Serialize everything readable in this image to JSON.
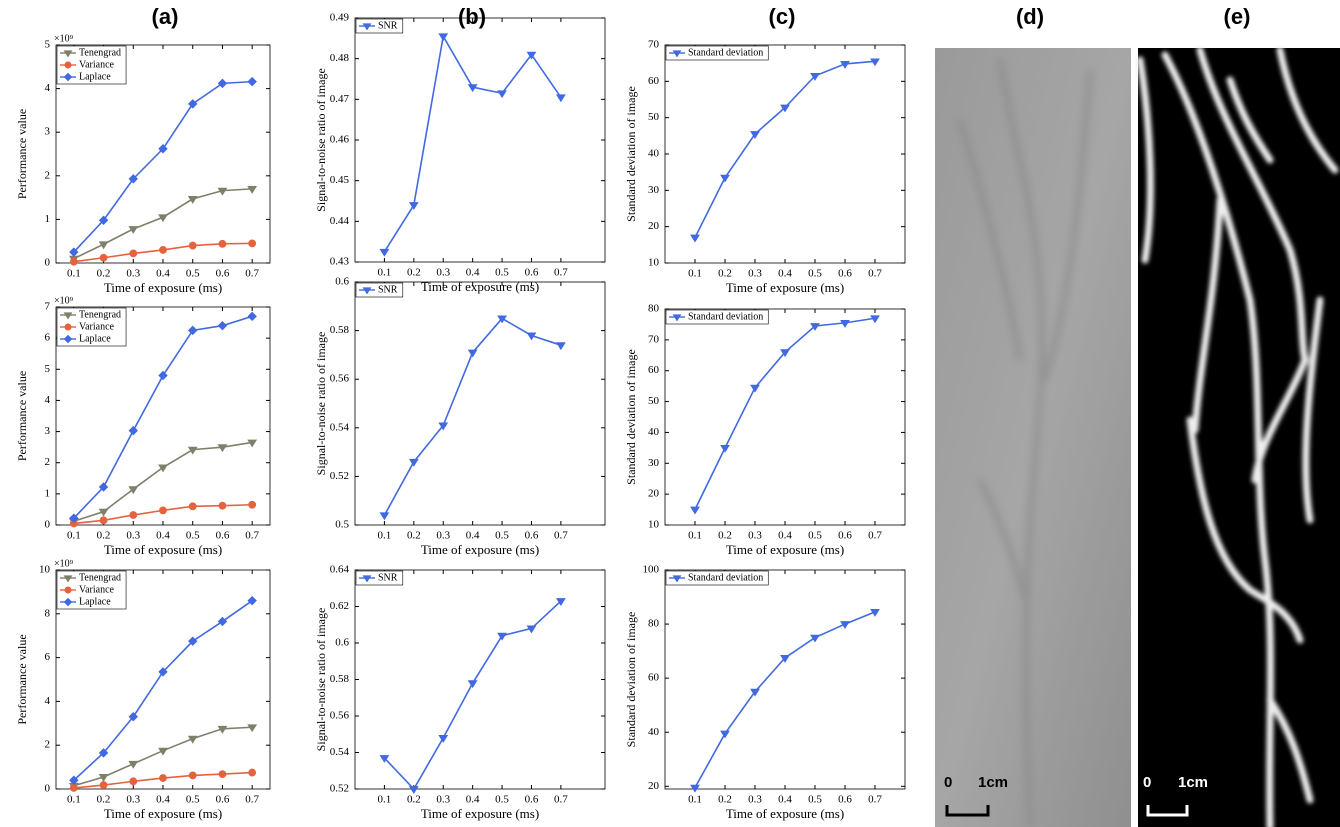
{
  "panel_labels": [
    "(a)",
    "(b)",
    "(c)",
    "(d)",
    "(e)"
  ],
  "scale_bars": [
    {
      "start": "0",
      "end": "1cm"
    },
    {
      "start": "0",
      "end": "1cm"
    }
  ],
  "chart_data": [
    {
      "type": "line",
      "x": [
        0.1,
        0.2,
        0.3,
        0.4,
        0.5,
        0.6,
        0.7
      ],
      "xlim": [
        0.04,
        0.76
      ],
      "xticks": [
        0.1,
        0.2,
        0.3,
        0.4,
        0.5,
        0.6,
        0.7
      ],
      "ylim": [
        0,
        5
      ],
      "yticks": [
        0,
        1,
        2,
        3,
        4,
        5
      ],
      "y_multiplier": "×10⁹",
      "xlabel": "Time of exposure (ms)",
      "ylabel": "Performance value",
      "legend": "upper left",
      "series": [
        {
          "name": "Tenengrad",
          "color": "#7f7f6a",
          "marker": "tri",
          "values": [
            0.1,
            0.43,
            0.78,
            1.05,
            1.47,
            1.66,
            1.7
          ]
        },
        {
          "name": "Variance",
          "color": "#e5623e",
          "marker": "circle",
          "values": [
            0.03,
            0.12,
            0.22,
            0.3,
            0.4,
            0.44,
            0.45
          ]
        },
        {
          "name": "Laplace",
          "color": "#4169e1",
          "marker": "diamond",
          "values": [
            0.25,
            0.98,
            1.93,
            2.62,
            3.65,
            4.12,
            4.16
          ]
        }
      ]
    },
    {
      "type": "line",
      "x": [
        0.1,
        0.2,
        0.3,
        0.4,
        0.5,
        0.6,
        0.7
      ],
      "xlim": [
        0,
        0.85
      ],
      "xticks": [
        0.1,
        0.2,
        0.3,
        0.4,
        0.5,
        0.6,
        0.7
      ],
      "ylim": [
        0.43,
        0.49
      ],
      "yticks": [
        0.43,
        0.44,
        0.45,
        0.46,
        0.47,
        0.48,
        0.49
      ],
      "xlabel": "Time of exposure (ms)",
      "ylabel": "Signal-to-noise ratio of image",
      "legend": "upper left",
      "series": [
        {
          "name": "SNR",
          "color": "#4169e1",
          "marker": "tri",
          "values": [
            0.4325,
            0.444,
            0.4855,
            0.473,
            0.4715,
            0.481,
            0.4705
          ]
        }
      ]
    },
    {
      "type": "line",
      "x": [
        0.1,
        0.2,
        0.3,
        0.4,
        0.5,
        0.6,
        0.7
      ],
      "xlim": [
        0,
        0.8
      ],
      "xticks": [
        0.1,
        0.2,
        0.3,
        0.4,
        0.5,
        0.6,
        0.7
      ],
      "ylim": [
        10,
        70
      ],
      "yticks": [
        10,
        20,
        30,
        40,
        50,
        60,
        70
      ],
      "xlabel": "Time of exposure (ms)",
      "ylabel": "Standard deviation of image",
      "legend": "upper left",
      "series": [
        {
          "name": "Standard deviation",
          "color": "#4169e1",
          "marker": "tri",
          "values": [
            17,
            33.5,
            45.5,
            52.8,
            61.5,
            64.8,
            65.5
          ]
        }
      ]
    },
    {
      "type": "line",
      "x": [
        0.1,
        0.2,
        0.3,
        0.4,
        0.5,
        0.6,
        0.7
      ],
      "xlim": [
        0.04,
        0.76
      ],
      "xticks": [
        0.1,
        0.2,
        0.3,
        0.4,
        0.5,
        0.6,
        0.7
      ],
      "ylim": [
        0,
        7
      ],
      "yticks": [
        0,
        1,
        2,
        3,
        4,
        5,
        6,
        7
      ],
      "y_multiplier": "×10⁹",
      "xlabel": "Time of exposure (ms)",
      "ylabel": "Performance value",
      "legend": "upper left",
      "series": [
        {
          "name": "Tenengrad",
          "color": "#7f7f6a",
          "marker": "tri",
          "values": [
            0.12,
            0.43,
            1.15,
            1.85,
            2.42,
            2.5,
            2.65
          ]
        },
        {
          "name": "Variance",
          "color": "#e5623e",
          "marker": "circle",
          "values": [
            0.05,
            0.15,
            0.32,
            0.47,
            0.6,
            0.62,
            0.65
          ]
        },
        {
          "name": "Laplace",
          "color": "#4169e1",
          "marker": "diamond",
          "values": [
            0.22,
            1.22,
            3.03,
            4.8,
            6.25,
            6.4,
            6.7
          ]
        }
      ]
    },
    {
      "type": "line",
      "x": [
        0.1,
        0.2,
        0.3,
        0.4,
        0.5,
        0.6,
        0.7
      ],
      "xlim": [
        0,
        0.85
      ],
      "xticks": [
        0.1,
        0.2,
        0.3,
        0.4,
        0.5,
        0.6,
        0.7
      ],
      "ylim": [
        0.5,
        0.6
      ],
      "yticks": [
        0.5,
        0.52,
        0.54,
        0.56,
        0.58,
        0.6
      ],
      "xlabel": "Time of exposure (ms)",
      "ylabel": "Signal-to-noise ratio of image",
      "legend": "upper left",
      "series": [
        {
          "name": "SNR",
          "color": "#4169e1",
          "marker": "tri",
          "values": [
            0.504,
            0.526,
            0.541,
            0.571,
            0.585,
            0.578,
            0.574
          ]
        }
      ]
    },
    {
      "type": "line",
      "x": [
        0.1,
        0.2,
        0.3,
        0.4,
        0.5,
        0.6,
        0.7
      ],
      "xlim": [
        0,
        0.8
      ],
      "xticks": [
        0.1,
        0.2,
        0.3,
        0.4,
        0.5,
        0.6,
        0.7
      ],
      "ylim": [
        10,
        80
      ],
      "yticks": [
        10,
        20,
        30,
        40,
        50,
        60,
        70,
        80
      ],
      "xlabel": "Time of exposure (ms)",
      "ylabel": "Standard deviation of image",
      "legend": "upper left",
      "series": [
        {
          "name": "Standard deviation",
          "color": "#4169e1",
          "marker": "tri",
          "values": [
            15,
            35,
            54.5,
            66,
            74.5,
            75.5,
            77
          ]
        }
      ]
    },
    {
      "type": "line",
      "x": [
        0.1,
        0.2,
        0.3,
        0.4,
        0.5,
        0.6,
        0.7
      ],
      "xlim": [
        0.04,
        0.76
      ],
      "xticks": [
        0.1,
        0.2,
        0.3,
        0.4,
        0.5,
        0.6,
        0.7
      ],
      "ylim": [
        0,
        10
      ],
      "yticks": [
        0,
        2,
        4,
        6,
        8,
        10
      ],
      "y_multiplier": "×10⁹",
      "xlabel": "Time of exposure (ms)",
      "ylabel": "Performance value",
      "legend": "upper left",
      "series": [
        {
          "name": "Tenengrad",
          "color": "#7f7f6a",
          "marker": "tri",
          "values": [
            0.15,
            0.55,
            1.15,
            1.75,
            2.3,
            2.75,
            2.82
          ]
        },
        {
          "name": "Variance",
          "color": "#e5623e",
          "marker": "circle",
          "values": [
            0.05,
            0.18,
            0.35,
            0.5,
            0.62,
            0.68,
            0.75
          ]
        },
        {
          "name": "Laplace",
          "color": "#4169e1",
          "marker": "diamond",
          "values": [
            0.4,
            1.65,
            3.3,
            5.35,
            6.75,
            7.65,
            8.6
          ]
        }
      ]
    },
    {
      "type": "line",
      "x": [
        0.1,
        0.2,
        0.3,
        0.4,
        0.5,
        0.6,
        0.7
      ],
      "xlim": [
        0,
        0.85
      ],
      "xticks": [
        0.1,
        0.2,
        0.3,
        0.4,
        0.5,
        0.6,
        0.7
      ],
      "ylim": [
        0.52,
        0.64
      ],
      "yticks": [
        0.52,
        0.54,
        0.56,
        0.58,
        0.6,
        0.62,
        0.64
      ],
      "xlabel": "Time of exposure (ms)",
      "ylabel": "Signal-to-noise ratio of image",
      "legend": "upper left",
      "series": [
        {
          "name": "SNR",
          "color": "#4169e1",
          "marker": "tri",
          "values": [
            0.537,
            0.52,
            0.548,
            0.578,
            0.604,
            0.608,
            0.623
          ]
        }
      ]
    },
    {
      "type": "line",
      "x": [
        0.1,
        0.2,
        0.3,
        0.4,
        0.5,
        0.6,
        0.7
      ],
      "xlim": [
        0,
        0.8
      ],
      "xticks": [
        0.1,
        0.2,
        0.3,
        0.4,
        0.5,
        0.6,
        0.7
      ],
      "ylim": [
        19,
        100
      ],
      "yticks": [
        20,
        40,
        60,
        80,
        100
      ],
      "xlabel": "Time of exposure (ms)",
      "ylabel": "Standard deviation of image",
      "legend": "upper left",
      "series": [
        {
          "name": "Standard deviation",
          "color": "#4169e1",
          "marker": "tri",
          "values": [
            19.5,
            39.5,
            55,
            67.5,
            75,
            80,
            84.5
          ]
        }
      ]
    }
  ]
}
